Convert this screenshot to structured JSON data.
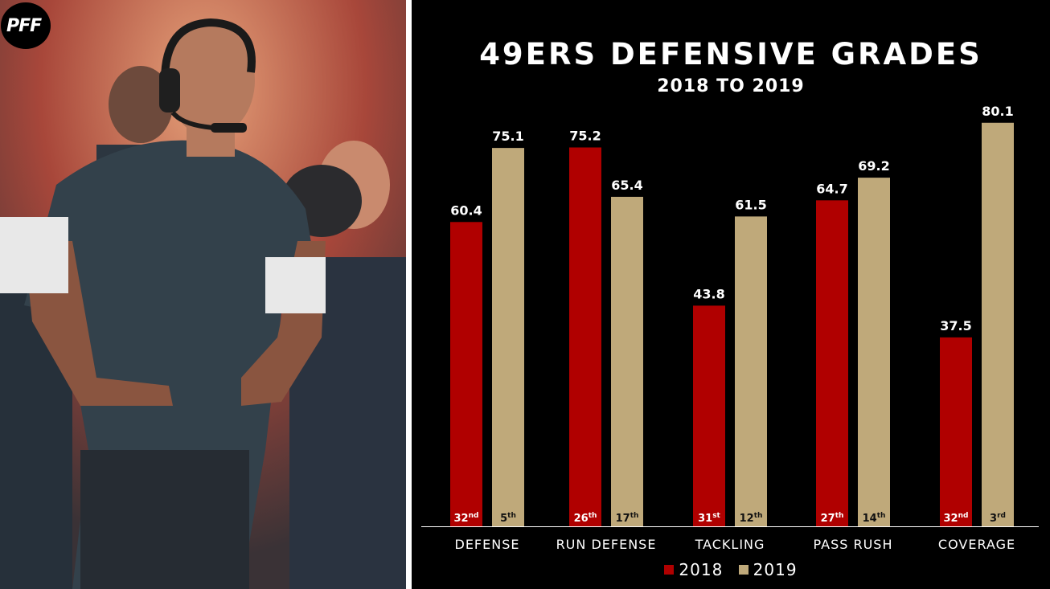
{
  "brand": {
    "logo_text": "PFF"
  },
  "colors": {
    "background": "#000000",
    "series_2018": "#b00000",
    "series_2019": "#bfa97a",
    "text": "#ffffff",
    "rank_2019_text": "#111111"
  },
  "chart_data": {
    "type": "bar",
    "title": "49ERS DEFENSIVE GRADES",
    "subtitle": "2018 TO 2019",
    "xlabel": "",
    "ylabel": "",
    "ylim": [
      0,
      100
    ],
    "grid": false,
    "legend_position": "bottom",
    "categories": [
      "DEFENSE",
      "RUN DEFENSE",
      "TACKLING",
      "PASS RUSH",
      "COVERAGE"
    ],
    "series": [
      {
        "name": "2018",
        "values": [
          60.4,
          75.2,
          43.8,
          64.7,
          37.5
        ],
        "rank_numbers": [
          "32",
          "26",
          "31",
          "27",
          "32"
        ],
        "rank_suffixes": [
          "nd",
          "th",
          "st",
          "th",
          "nd"
        ]
      },
      {
        "name": "2019",
        "values": [
          75.1,
          65.4,
          61.5,
          69.2,
          80.1
        ],
        "rank_numbers": [
          "5",
          "17",
          "12",
          "14",
          "3"
        ],
        "rank_suffixes": [
          "th",
          "th",
          "th",
          "th",
          "rd"
        ]
      }
    ]
  }
}
